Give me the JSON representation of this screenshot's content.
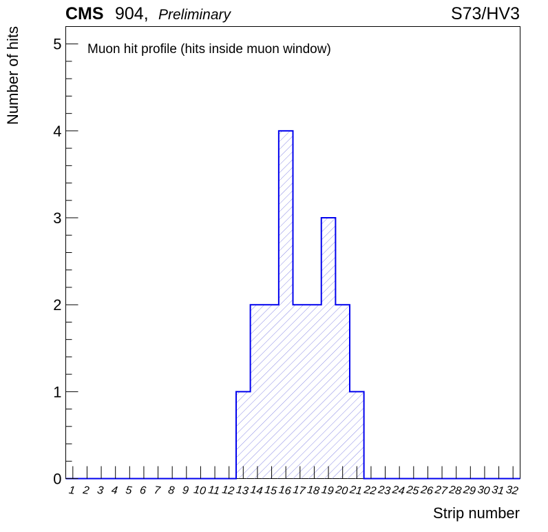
{
  "header": {
    "experiment": "CMS",
    "site": "904,",
    "status": "Preliminary",
    "run_label": "S73/HV3"
  },
  "chart_data": {
    "type": "histogram",
    "title": "Muon hit profile (hits inside muon window)",
    "xlabel": "Strip number",
    "ylabel": "Number of hits",
    "categories": [
      "1",
      "2",
      "3",
      "4",
      "5",
      "6",
      "7",
      "8",
      "9",
      "10",
      "11",
      "12",
      "13",
      "14",
      "15",
      "16",
      "17",
      "18",
      "19",
      "20",
      "21",
      "22",
      "23",
      "24",
      "25",
      "26",
      "27",
      "28",
      "29",
      "30",
      "31",
      "32"
    ],
    "values": [
      0,
      0,
      0,
      0,
      0,
      0,
      0,
      0,
      0,
      0,
      0,
      0,
      1,
      2,
      2,
      4,
      2,
      2,
      3,
      2,
      1,
      0,
      0,
      0,
      0,
      0,
      0,
      0,
      0,
      0,
      0,
      0
    ],
    "ylim": [
      0,
      5.2
    ],
    "yticks": [
      "0",
      "1",
      "2",
      "3",
      "4",
      "5"
    ],
    "grid": false,
    "line_color": "#0000ee",
    "fill_hatch_color": "#7a7ae0"
  }
}
